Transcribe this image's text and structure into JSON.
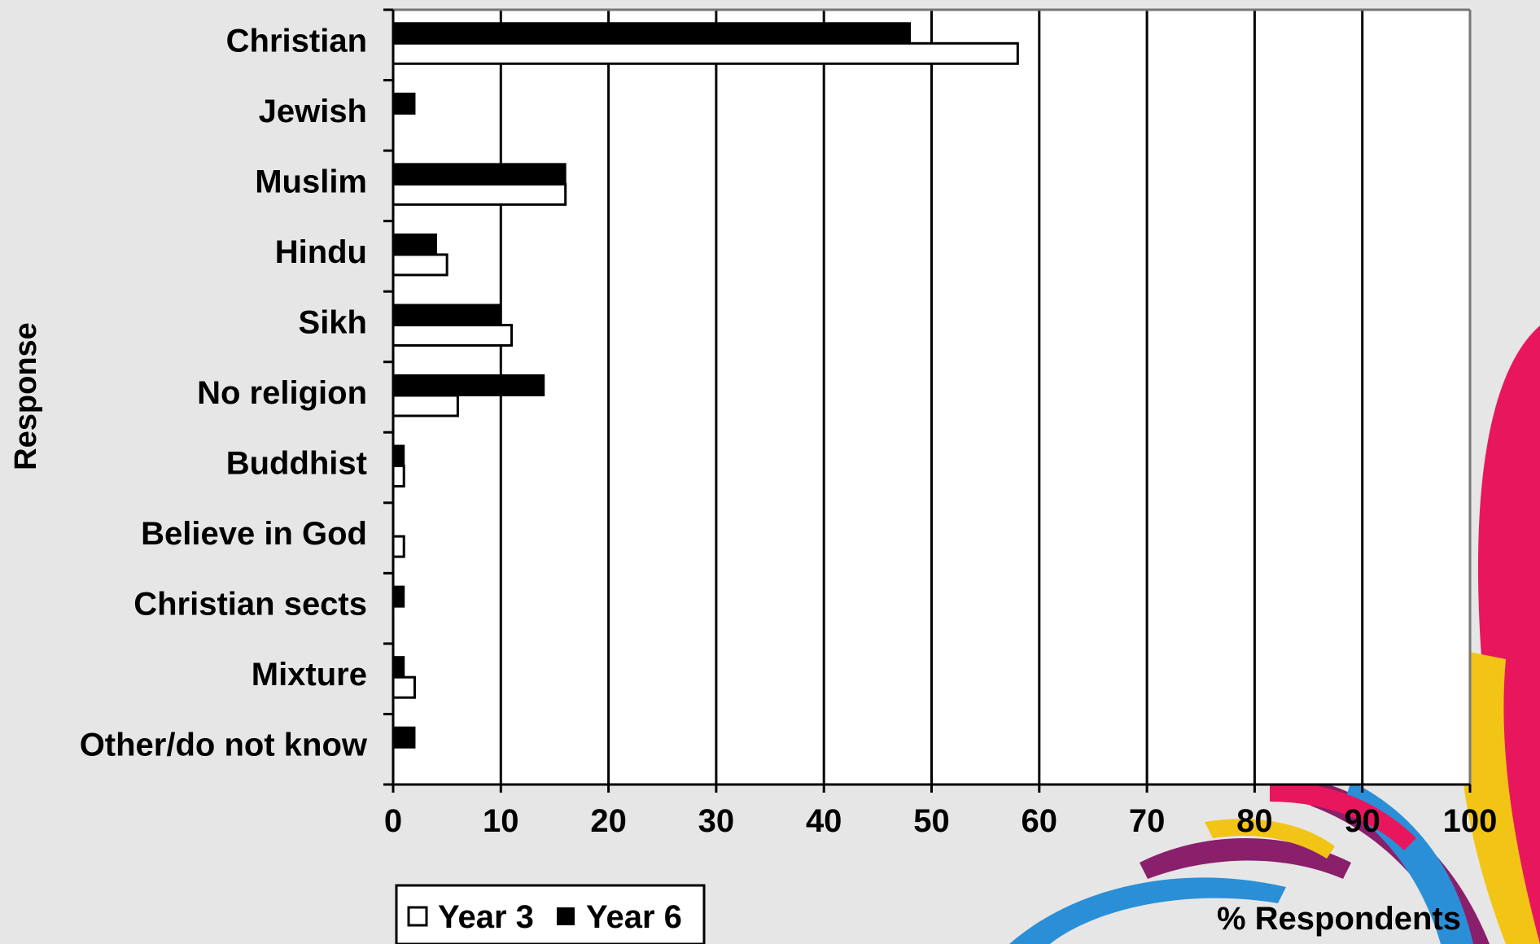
{
  "chart_data": {
    "type": "bar",
    "orientation": "horizontal",
    "title": "",
    "xlabel": "% Respondents",
    "ylabel": "Response",
    "xlim": [
      0,
      100
    ],
    "x_ticks": [
      "0",
      "10",
      "20",
      "30",
      "40",
      "50",
      "60",
      "70",
      "80",
      "90",
      "100"
    ],
    "grid": "vertical gridlines on",
    "legend_position": "bottom-left",
    "categories": [
      "Christian",
      "Jewish",
      "Muslim",
      "Hindu",
      "Sikh",
      "No religion",
      "Buddhist",
      "Believe in God",
      "Christian sects",
      "Mixture",
      "Other/do not know"
    ],
    "series": [
      {
        "name": "Year 3",
        "color": "#ffffff",
        "values": [
          58,
          0,
          16,
          5,
          11,
          6,
          1,
          1,
          0,
          2,
          0
        ]
      },
      {
        "name": "Year 6",
        "color": "#000000",
        "values": [
          48,
          2,
          16,
          4,
          10,
          14,
          1,
          0,
          1,
          1,
          2
        ]
      }
    ]
  },
  "colors": {
    "background": "#e6e6e6",
    "plot_area": "#ffffff",
    "accent_pink": "#e8175d",
    "accent_yellow": "#f2c416",
    "accent_blue": "#2a8fd6",
    "accent_purple": "#8a1f6b"
  }
}
